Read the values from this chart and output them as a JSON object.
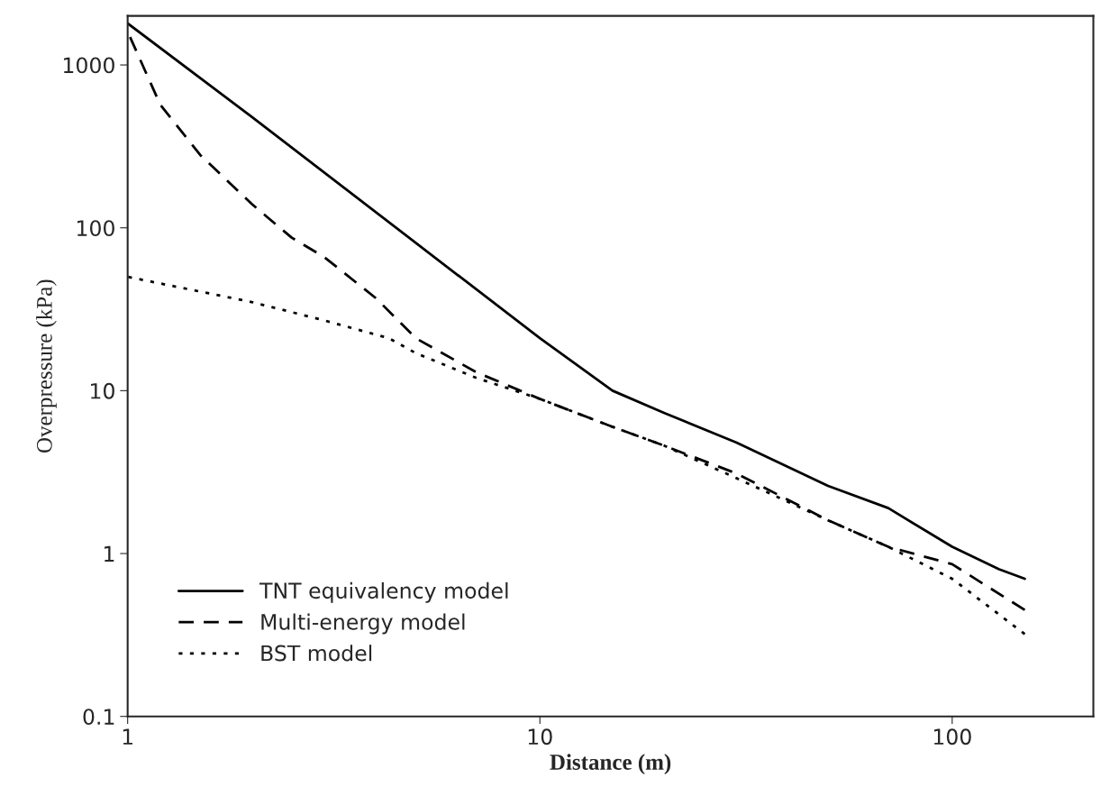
{
  "chart_data": {
    "type": "line",
    "xlabel": "Distance (m)",
    "ylabel": "Overpressure (kPa)",
    "log": "xy",
    "xlim": [
      1,
      220
    ],
    "ylim": [
      0.1,
      2000
    ],
    "xticks": [
      1,
      10,
      100
    ],
    "yticks": [
      {
        "value": 0.1,
        "label": "0.1"
      },
      1,
      10,
      100,
      1000
    ],
    "grid": false,
    "legend": "bottom left",
    "marker": "none",
    "series": [
      {
        "name": "TNT equivalency model",
        "color": "#000000",
        "line_style": "solid",
        "x": [
          1,
          2,
          10,
          15,
          20,
          30,
          50,
          70,
          100,
          130,
          150
        ],
        "values": [
          1800,
          480,
          21,
          10,
          7.3,
          4.8,
          2.6,
          1.9,
          1.1,
          0.8,
          0.7
        ]
      },
      {
        "name": "Multi-energy model",
        "color": "#000000",
        "line_style": "dashed",
        "x": [
          1,
          1.2,
          1.5,
          2,
          2.5,
          3,
          4,
          5,
          7,
          10,
          15,
          20,
          30,
          50,
          70,
          100,
          150
        ],
        "values": [
          1600,
          570,
          280,
          140,
          87,
          66,
          37,
          21,
          13,
          8.9,
          6,
          4.6,
          3.1,
          1.6,
          1.1,
          0.86,
          0.45
        ]
      },
      {
        "name": "BST model",
        "color": "#000000",
        "line_style": "dotted",
        "x": [
          1,
          2,
          3,
          4.3,
          5,
          7,
          10,
          15,
          20,
          30,
          50,
          70,
          100,
          150
        ],
        "values": [
          50,
          35,
          27,
          21,
          17,
          12,
          8.9,
          6,
          4.6,
          2.9,
          1.6,
          1.1,
          0.7,
          0.32
        ]
      }
    ]
  }
}
